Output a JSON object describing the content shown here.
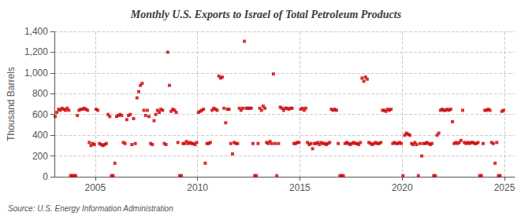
{
  "chart_data": {
    "type": "scatter",
    "title": "Monthly U.S. Exports to Israel of Total Petroleum Products",
    "ylabel": "Thousand Barrels",
    "source": "Source: U.S. Energy Information Administration",
    "color": "#cc0000",
    "marker": "square",
    "grid": true,
    "xlim": [
      2003.0,
      2025.5
    ],
    "xticks": [
      2005,
      2010,
      2015,
      2020,
      2025
    ],
    "ylim": [
      0,
      1400
    ],
    "yticks": [
      0,
      200,
      400,
      600,
      800,
      {
        "value": 1000,
        "label": "1,000"
      },
      {
        "value": 1200,
        "label": "1,200"
      },
      {
        "value": 1400,
        "label": "1,400"
      }
    ],
    "x": [
      2003.0416666667,
      2003.125,
      2003.2083333333,
      2003.2916666667,
      2003.375,
      2003.4583333333,
      2003.5416666667,
      2003.625,
      2003.7083333333,
      2003.7916666667,
      2003.875,
      2003.9583333333,
      2004.0416666667,
      2004.125,
      2004.2083333333,
      2004.2916666667,
      2004.375,
      2004.4583333333,
      2004.5416666667,
      2004.625,
      2004.7083333333,
      2004.7916666667,
      2004.875,
      2004.9583333333,
      2005.0416666667,
      2005.125,
      2005.2083333333,
      2005.2916666667,
      2005.375,
      2005.4583333333,
      2005.5416666667,
      2005.625,
      2005.7083333333,
      2005.7916666667,
      2005.875,
      2005.9583333333,
      2006.0416666667,
      2006.125,
      2006.2083333333,
      2006.2916666667,
      2006.375,
      2006.4583333333,
      2006.5416666667,
      2006.625,
      2006.7083333333,
      2006.7916666667,
      2006.875,
      2006.9583333333,
      2007.0416666667,
      2007.125,
      2007.2083333333,
      2007.2916666667,
      2007.375,
      2007.4583333333,
      2007.5416666667,
      2007.625,
      2007.7083333333,
      2007.7916666667,
      2007.875,
      2007.9583333333,
      2008.0416666667,
      2008.125,
      2008.2083333333,
      2008.2916666667,
      2008.375,
      2008.4583333333,
      2008.5416666667,
      2008.625,
      2008.7083333333,
      2008.7916666667,
      2008.875,
      2008.9583333333,
      2009.0416666667,
      2009.125,
      2009.2083333333,
      2009.2916666667,
      2009.375,
      2009.4583333333,
      2009.5416666667,
      2009.625,
      2009.7083333333,
      2009.7916666667,
      2009.875,
      2009.9583333333,
      2010.0416666667,
      2010.125,
      2010.2083333333,
      2010.2916666667,
      2010.375,
      2010.4583333333,
      2010.5416666667,
      2010.625,
      2010.7083333333,
      2010.7916666667,
      2010.875,
      2010.9583333333,
      2011.0416666667,
      2011.125,
      2011.2083333333,
      2011.2916666667,
      2011.375,
      2011.4583333333,
      2011.5416666667,
      2011.625,
      2011.7083333333,
      2011.7916666667,
      2011.875,
      2011.9583333333,
      2012.0416666667,
      2012.125,
      2012.2083333333,
      2012.2916666667,
      2012.375,
      2012.4583333333,
      2012.5416666667,
      2012.625,
      2012.7083333333,
      2012.7916666667,
      2012.875,
      2012.9583333333,
      2013.0416666667,
      2013.125,
      2013.2083333333,
      2013.2916666667,
      2013.375,
      2013.4583333333,
      2013.5416666667,
      2013.625,
      2013.7083333333,
      2013.7916666667,
      2013.875,
      2013.9583333333,
      2014.0416666667,
      2014.125,
      2014.2083333333,
      2014.2916666667,
      2014.375,
      2014.4583333333,
      2014.5416666667,
      2014.625,
      2014.7083333333,
      2014.7916666667,
      2014.875,
      2014.9583333333,
      2015.0416666667,
      2015.125,
      2015.2083333333,
      2015.2916666667,
      2015.375,
      2015.4583333333,
      2015.5416666667,
      2015.625,
      2015.7083333333,
      2015.7916666667,
      2015.875,
      2015.9583333333,
      2016.0416666667,
      2016.125,
      2016.2083333333,
      2016.2916666667,
      2016.375,
      2016.4583333333,
      2016.5416666667,
      2016.625,
      2016.7083333333,
      2016.7916666667,
      2016.875,
      2016.9583333333,
      2017.0416666667,
      2017.125,
      2017.2083333333,
      2017.2916666667,
      2017.375,
      2017.4583333333,
      2017.5416666667,
      2017.625,
      2017.7083333333,
      2017.7916666667,
      2017.875,
      2017.9583333333,
      2018.0416666667,
      2018.125,
      2018.2083333333,
      2018.2916666667,
      2018.375,
      2018.4583333333,
      2018.5416666667,
      2018.625,
      2018.7083333333,
      2018.7916666667,
      2018.875,
      2018.9583333333,
      2019.0416666667,
      2019.125,
      2019.2083333333,
      2019.2916666667,
      2019.375,
      2019.4583333333,
      2019.5416666667,
      2019.625,
      2019.7083333333,
      2019.7916666667,
      2019.875,
      2019.9583333333,
      2020.0416666667,
      2020.125,
      2020.2083333333,
      2020.2916666667,
      2020.375,
      2020.4583333333,
      2020.5416666667,
      2020.625,
      2020.7083333333,
      2020.7916666667,
      2020.875,
      2020.9583333333,
      2021.0416666667,
      2021.125,
      2021.2083333333,
      2021.2916666667,
      2021.375,
      2021.4583333333,
      2021.5416666667,
      2021.625,
      2021.7083333333,
      2021.7916666667,
      2021.875,
      2021.9583333333,
      2022.0416666667,
      2022.125,
      2022.2083333333,
      2022.2916666667,
      2022.375,
      2022.4583333333,
      2022.5416666667,
      2022.625,
      2022.7083333333,
      2022.7916666667,
      2022.875,
      2022.9583333333,
      2023.0416666667,
      2023.125,
      2023.2083333333,
      2023.2916666667,
      2023.375,
      2023.4583333333,
      2023.5416666667,
      2023.625,
      2023.7083333333,
      2023.7916666667,
      2023.875,
      2023.9583333333,
      2024.0416666667,
      2024.125,
      2024.2083333333,
      2024.2916666667,
      2024.375,
      2024.4583333333,
      2024.5416666667,
      2024.625,
      2024.7083333333,
      2024.7916666667,
      2024.875,
      2024.9583333333
    ],
    "values": [
      580,
      620,
      650,
      640,
      660,
      650,
      640,
      660,
      640,
      10,
      10,
      10,
      10,
      590,
      640,
      650,
      650,
      660,
      650,
      640,
      330,
      300,
      320,
      310,
      650,
      640,
      320,
      310,
      300,
      310,
      320,
      600,
      580,
      10,
      10,
      130,
      580,
      590,
      600,
      590,
      330,
      320,
      550,
      590,
      600,
      310,
      560,
      320,
      760,
      820,
      880,
      900,
      640,
      590,
      640,
      580,
      320,
      310,
      540,
      600,
      640,
      620,
      650,
      640,
      320,
      310,
      1200,
      880,
      630,
      650,
      640,
      620,
      330,
      10,
      10,
      320,
      320,
      340,
      320,
      330,
      320,
      320,
      310,
      330,
      620,
      630,
      640,
      650,
      130,
      320,
      320,
      330,
      640,
      660,
      650,
      640,
      970,
      950,
      960,
      660,
      520,
      650,
      650,
      320,
      220,
      330,
      320,
      320,
      660,
      640,
      660,
      1305,
      660,
      660,
      660,
      660,
      320,
      10,
      10,
      320,
      660,
      640,
      680,
      660,
      330,
      320,
      340,
      320,
      990,
      320,
      10,
      320,
      670,
      660,
      640,
      660,
      660,
      650,
      660,
      660,
      320,
      320,
      330,
      330,
      650,
      660,
      640,
      660,
      330,
      310,
      320,
      270,
      320,
      320,
      330,
      310,
      330,
      320,
      320,
      310,
      320,
      330,
      650,
      640,
      650,
      640,
      320,
      10,
      10,
      10,
      320,
      330,
      320,
      310,
      320,
      330,
      320,
      320,
      310,
      330,
      950,
      920,
      960,
      940,
      330,
      320,
      310,
      320,
      330,
      320,
      320,
      330,
      640,
      640,
      630,
      650,
      640,
      650,
      320,
      330,
      320,
      320,
      330,
      320,
      10,
      400,
      420,
      410,
      400,
      320,
      310,
      330,
      310,
      10,
      320,
      200,
      320,
      320,
      330,
      320,
      310,
      320,
      10,
      10,
      400,
      420,
      640,
      650,
      640,
      640,
      650,
      640,
      650,
      530,
      320,
      330,
      320,
      330,
      350,
      640,
      330,
      320,
      330,
      320,
      330,
      330,
      320,
      320,
      330,
      10,
      10,
      320,
      640,
      640,
      650,
      640,
      330,
      320,
      130,
      330,
      10,
      10,
      630,
      640
    ]
  }
}
